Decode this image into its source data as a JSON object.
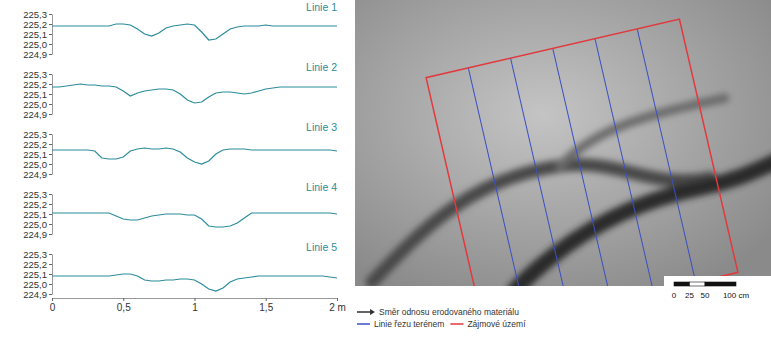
{
  "chart_data": [
    {
      "type": "line",
      "title": "Linie 1",
      "color": "#2b8c9b",
      "tick_labels": "y",
      "xlim": [
        0,
        2
      ],
      "ylim": [
        224.9,
        225.3
      ],
      "yticks": [
        {
          "value": 224.9,
          "label": "224,9"
        },
        {
          "value": 225.0,
          "label": "225,0"
        },
        {
          "value": 225.1,
          "label": "225,1"
        },
        {
          "value": 225.2,
          "label": "225,2"
        },
        {
          "value": 225.3,
          "label": "225,3"
        }
      ],
      "x": [
        0,
        0.05,
        0.1,
        0.15,
        0.2,
        0.25,
        0.3,
        0.35,
        0.4,
        0.45,
        0.5,
        0.55,
        0.6,
        0.65,
        0.7,
        0.75,
        0.8,
        0.85,
        0.9,
        0.95,
        1,
        1.05,
        1.1,
        1.15,
        1.2,
        1.25,
        1.3,
        1.35,
        1.4,
        1.45,
        1.5,
        1.55,
        1.6,
        1.65,
        1.7,
        1.75,
        1.8,
        1.85,
        1.9,
        1.95,
        2
      ],
      "values": [
        225.18,
        225.18,
        225.18,
        225.18,
        225.18,
        225.18,
        225.18,
        225.18,
        225.18,
        225.2,
        225.2,
        225.19,
        225.15,
        225.1,
        225.08,
        225.11,
        225.16,
        225.18,
        225.19,
        225.2,
        225.19,
        225.12,
        225.04,
        225.05,
        225.1,
        225.15,
        225.17,
        225.18,
        225.18,
        225.18,
        225.19,
        225.18,
        225.18,
        225.18,
        225.18,
        225.18,
        225.18,
        225.18,
        225.18,
        225.18,
        225.18
      ]
    },
    {
      "type": "line",
      "title": "Linie 2",
      "color": "#2b8c9b",
      "tick_labels": "y",
      "xlim": [
        0,
        2
      ],
      "ylim": [
        224.9,
        225.3
      ],
      "yticks": [
        {
          "value": 224.9,
          "label": "224,9"
        },
        {
          "value": 225.0,
          "label": "225,0"
        },
        {
          "value": 225.1,
          "label": "225,1"
        },
        {
          "value": 225.2,
          "label": "225,2"
        },
        {
          "value": 225.3,
          "label": "225,3"
        }
      ],
      "x": [
        0,
        0.05,
        0.1,
        0.15,
        0.2,
        0.25,
        0.3,
        0.35,
        0.4,
        0.45,
        0.5,
        0.55,
        0.6,
        0.65,
        0.7,
        0.75,
        0.8,
        0.85,
        0.9,
        0.95,
        1,
        1.05,
        1.1,
        1.15,
        1.2,
        1.25,
        1.3,
        1.35,
        1.4,
        1.45,
        1.5,
        1.55,
        1.6,
        1.65,
        1.7,
        1.75,
        1.8,
        1.85,
        1.9,
        1.95,
        2
      ],
      "values": [
        225.17,
        225.17,
        225.18,
        225.19,
        225.2,
        225.19,
        225.19,
        225.18,
        225.18,
        225.17,
        225.13,
        225.08,
        225.11,
        225.13,
        225.14,
        225.15,
        225.15,
        225.14,
        225.1,
        225.04,
        225.01,
        225.02,
        225.07,
        225.11,
        225.12,
        225.12,
        225.11,
        225.1,
        225.11,
        225.13,
        225.15,
        225.16,
        225.17,
        225.17,
        225.17,
        225.17,
        225.17,
        225.17,
        225.17,
        225.17,
        225.17
      ]
    },
    {
      "type": "line",
      "title": "Linie 3",
      "color": "#2b8c9b",
      "tick_labels": "y",
      "xlim": [
        0,
        2
      ],
      "ylim": [
        224.9,
        225.3
      ],
      "yticks": [
        {
          "value": 224.9,
          "label": "224,9"
        },
        {
          "value": 225.0,
          "label": "225,0"
        },
        {
          "value": 225.1,
          "label": "225,1"
        },
        {
          "value": 225.2,
          "label": "225,2"
        },
        {
          "value": 225.3,
          "label": "225,3"
        }
      ],
      "x": [
        0,
        0.05,
        0.1,
        0.15,
        0.2,
        0.25,
        0.3,
        0.35,
        0.4,
        0.45,
        0.5,
        0.55,
        0.6,
        0.65,
        0.7,
        0.75,
        0.8,
        0.85,
        0.9,
        0.95,
        1,
        1.05,
        1.1,
        1.15,
        1.2,
        1.25,
        1.3,
        1.35,
        1.4,
        1.45,
        1.5,
        1.55,
        1.6,
        1.65,
        1.7,
        1.75,
        1.8,
        1.85,
        1.9,
        1.95,
        2
      ],
      "values": [
        225.14,
        225.14,
        225.14,
        225.14,
        225.14,
        225.14,
        225.13,
        225.06,
        225.05,
        225.05,
        225.07,
        225.13,
        225.15,
        225.16,
        225.15,
        225.15,
        225.16,
        225.15,
        225.12,
        225.06,
        225.02,
        225,
        225.03,
        225.1,
        225.14,
        225.15,
        225.15,
        225.15,
        225.14,
        225.14,
        225.14,
        225.14,
        225.14,
        225.14,
        225.14,
        225.14,
        225.14,
        225.14,
        225.14,
        225.14,
        225.13
      ]
    },
    {
      "type": "line",
      "title": "Linie 4",
      "color": "#2b8c9b",
      "tick_labels": "y",
      "xlim": [
        0,
        2
      ],
      "ylim": [
        224.9,
        225.3
      ],
      "yticks": [
        {
          "value": 224.9,
          "label": "224,9"
        },
        {
          "value": 225.0,
          "label": "225,0"
        },
        {
          "value": 225.1,
          "label": "225,1"
        },
        {
          "value": 225.2,
          "label": "225,2"
        },
        {
          "value": 225.3,
          "label": "225,3"
        }
      ],
      "x": [
        0,
        0.05,
        0.1,
        0.15,
        0.2,
        0.25,
        0.3,
        0.35,
        0.4,
        0.45,
        0.5,
        0.55,
        0.6,
        0.65,
        0.7,
        0.75,
        0.8,
        0.85,
        0.9,
        0.95,
        1,
        1.05,
        1.1,
        1.15,
        1.2,
        1.25,
        1.3,
        1.35,
        1.4,
        1.45,
        1.5,
        1.55,
        1.6,
        1.65,
        1.7,
        1.75,
        1.8,
        1.85,
        1.9,
        1.95,
        2
      ],
      "values": [
        225.11,
        225.11,
        225.11,
        225.11,
        225.11,
        225.11,
        225.11,
        225.11,
        225.11,
        225.08,
        225.05,
        225.04,
        225.04,
        225.06,
        225.08,
        225.09,
        225.1,
        225.1,
        225.1,
        225.09,
        225.09,
        225.05,
        224.98,
        224.97,
        224.97,
        224.98,
        225.01,
        225.06,
        225.11,
        225.11,
        225.11,
        225.11,
        225.11,
        225.11,
        225.11,
        225.11,
        225.11,
        225.11,
        225.11,
        225.11,
        225.1
      ]
    },
    {
      "type": "line",
      "title": "Linie 5",
      "color": "#2b8c9b",
      "xlim": [
        0,
        2
      ],
      "ylim": [
        224.9,
        225.3
      ],
      "xticks": [
        0,
        {
          "value": 0.5,
          "label": "0,5"
        },
        1,
        {
          "value": 1.5,
          "label": "1,5"
        },
        {
          "value": 2,
          "label": "2 m"
        }
      ],
      "yticks": [
        {
          "value": 224.9,
          "label": "224,9"
        },
        {
          "value": 225.0,
          "label": "225,0"
        },
        {
          "value": 225.1,
          "label": "225,1"
        },
        {
          "value": 225.2,
          "label": "225,2"
        },
        {
          "value": 225.3,
          "label": "225,3"
        }
      ],
      "x": [
        0,
        0.05,
        0.1,
        0.15,
        0.2,
        0.25,
        0.3,
        0.35,
        0.4,
        0.45,
        0.5,
        0.55,
        0.6,
        0.65,
        0.7,
        0.75,
        0.8,
        0.85,
        0.9,
        0.95,
        1,
        1.05,
        1.1,
        1.15,
        1.2,
        1.25,
        1.3,
        1.35,
        1.4,
        1.45,
        1.5,
        1.55,
        1.6,
        1.65,
        1.7,
        1.75,
        1.8,
        1.85,
        1.9,
        1.95,
        2
      ],
      "values": [
        225.08,
        225.08,
        225.08,
        225.08,
        225.08,
        225.08,
        225.08,
        225.08,
        225.08,
        225.09,
        225.1,
        225.1,
        225.08,
        225.04,
        225.03,
        225.03,
        225.04,
        225.04,
        225.05,
        225.05,
        225.04,
        225,
        224.95,
        224.93,
        224.96,
        225.02,
        225.05,
        225.06,
        225.07,
        225.08,
        225.08,
        225.08,
        225.08,
        225.08,
        225.08,
        225.08,
        225.08,
        225.08,
        225.08,
        225.07,
        225.06
      ]
    }
  ],
  "photo": {
    "scale": {
      "ticks": [
        0,
        25,
        50,
        {
          "value": 100,
          "label": "100 cm"
        }
      ]
    },
    "legend": [
      {
        "label": "Směr odnosu erodovaného materiálu",
        "color": "#333333"
      },
      {
        "label": "Linie řezu terénem",
        "color": "#3b4fc4"
      },
      {
        "label": "Zájmové území",
        "color": "#e0393e"
      }
    ]
  }
}
